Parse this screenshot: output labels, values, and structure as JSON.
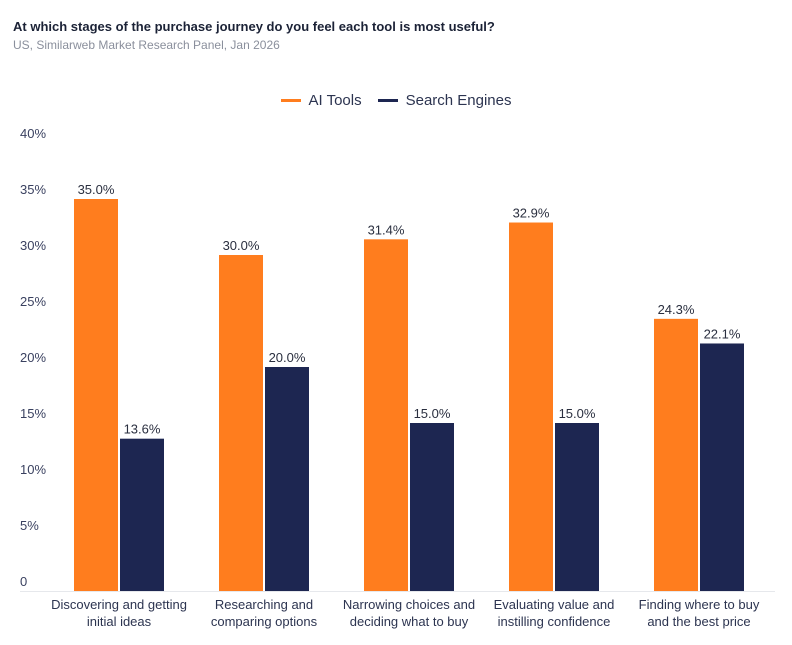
{
  "title": "At which stages of the purchase journey do you feel each tool is most useful?",
  "subtitle": "US, Similarweb Market Research Panel, Jan 2026",
  "chart_data": {
    "type": "bar",
    "categories": [
      [
        "Discovering and getting",
        "initial ideas"
      ],
      [
        "Researching and",
        "comparing options"
      ],
      [
        "Narrowing choices and",
        "deciding what to buy"
      ],
      [
        "Evaluating value and",
        "instilling confidence"
      ],
      [
        "Finding where to buy",
        "and the best price"
      ]
    ],
    "series": [
      {
        "name": "AI Tools",
        "color": "#ff7d1e",
        "values": [
          35.0,
          30.0,
          31.4,
          32.9,
          24.3
        ]
      },
      {
        "name": "Search Engines",
        "color": "#1d2651",
        "values": [
          13.6,
          20.0,
          15.0,
          15.0,
          22.1
        ]
      }
    ],
    "ylim": [
      0,
      40
    ],
    "yticks": [
      "0",
      "5%",
      "10%",
      "15%",
      "20%",
      "25%",
      "30%",
      "35%",
      "40%"
    ],
    "grid": false,
    "legend": "top-center"
  }
}
